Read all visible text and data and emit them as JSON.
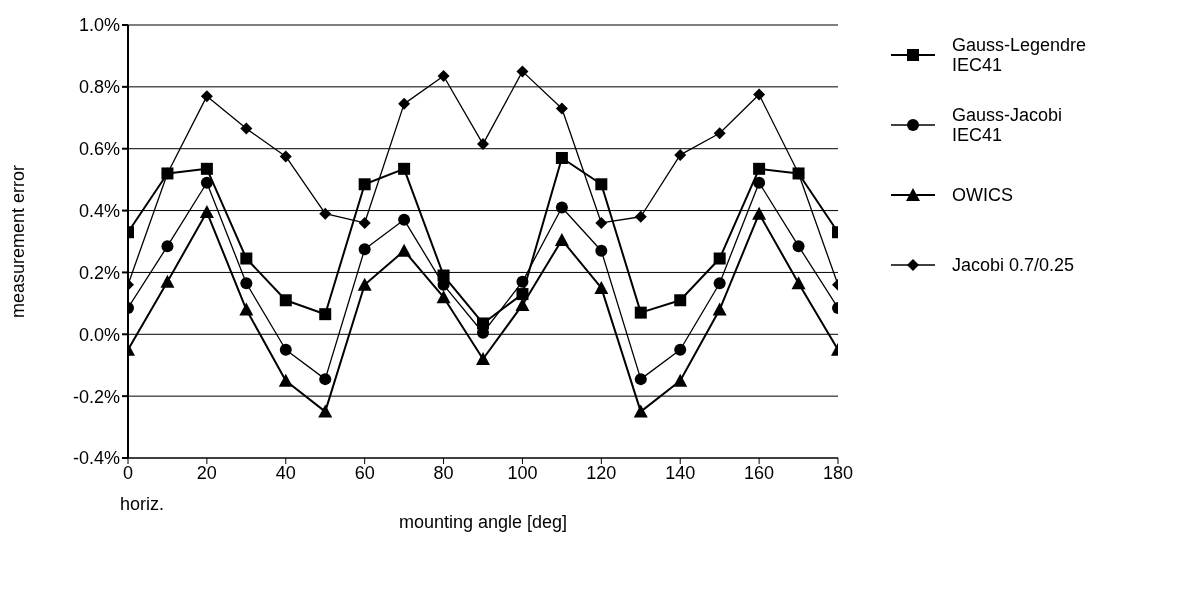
{
  "chart_data": {
    "type": "line",
    "xlabel": "mounting angle    [deg]",
    "ylabel": "measurement error",
    "x": [
      0,
      10,
      20,
      30,
      40,
      50,
      60,
      70,
      80,
      90,
      100,
      110,
      120,
      130,
      140,
      150,
      160,
      170,
      180
    ],
    "series": [
      {
        "name": "Gauss-Legendre IEC41",
        "color": "#000000",
        "marker": "square",
        "values": [
          0.33,
          0.52,
          0.535,
          0.245,
          0.11,
          0.065,
          0.485,
          0.535,
          0.19,
          0.035,
          0.13,
          0.57,
          0.485,
          0.07,
          0.11,
          0.245,
          0.535,
          0.52,
          0.33
        ]
      },
      {
        "name": "Gauss-Jacobi IEC41",
        "color": "#000000",
        "marker": "circle",
        "values": [
          0.085,
          0.285,
          0.49,
          0.165,
          -0.05,
          -0.145,
          0.275,
          0.37,
          0.16,
          0.005,
          0.17,
          0.41,
          0.27,
          -0.145,
          -0.05,
          0.165,
          0.49,
          0.285,
          0.085
        ]
      },
      {
        "name": "OWICS",
        "color": "#000000",
        "marker": "triangle",
        "values": [
          -0.05,
          0.17,
          0.395,
          0.08,
          -0.15,
          -0.25,
          0.16,
          0.27,
          0.12,
          -0.08,
          0.095,
          0.305,
          0.15,
          -0.25,
          -0.15,
          0.08,
          0.39,
          0.165,
          -0.05
        ]
      },
      {
        "name": "Jacobi 0.7/0.25",
        "color": "#000000",
        "marker": "diamond",
        "values": [
          0.16,
          0.52,
          0.77,
          0.665,
          0.575,
          0.39,
          0.36,
          0.745,
          0.835,
          0.615,
          0.85,
          0.73,
          0.36,
          0.38,
          0.58,
          0.65,
          0.775,
          0.52,
          0.16
        ]
      }
    ],
    "xlim": [
      0,
      180
    ],
    "xticks": [
      0,
      20,
      40,
      60,
      80,
      100,
      120,
      140,
      160,
      180
    ],
    "ylim": [
      -0.4,
      1.0
    ],
    "yticks": [
      {
        "value": -0.4,
        "label": "-0.4%"
      },
      {
        "value": -0.2,
        "label": "-0.2%"
      },
      {
        "value": 0,
        "label": "0.0%"
      },
      {
        "value": 0.2,
        "label": "0.2%"
      },
      {
        "value": 0.4,
        "label": "0.4%"
      },
      {
        "value": 0.6,
        "label": "0.6%"
      },
      {
        "value": 0.8,
        "label": "0.8%"
      },
      {
        "value": 1.0,
        "label": "1.0%"
      }
    ],
    "grid": "y",
    "legend": "right",
    "line_style": "solid",
    "annotations": [
      "horiz."
    ]
  }
}
